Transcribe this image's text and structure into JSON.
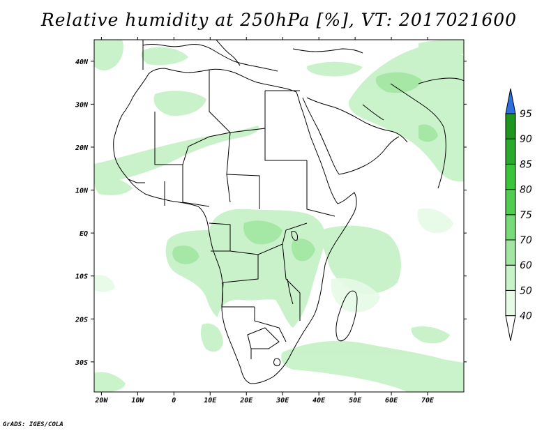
{
  "title": "Relative humidity at 250hPa [%], VT: 2017021600",
  "credit": "GrADS: IGES/COLA",
  "map": {
    "lon_range": [
      -22,
      80
    ],
    "lat_range": [
      -37,
      45
    ],
    "lon_ticks": [
      {
        "value": -20,
        "label": "20W"
      },
      {
        "value": -10,
        "label": "10W"
      },
      {
        "value": 0,
        "label": "0"
      },
      {
        "value": 10,
        "label": "10E"
      },
      {
        "value": 20,
        "label": "20E"
      },
      {
        "value": 30,
        "label": "30E"
      },
      {
        "value": 40,
        "label": "40E"
      },
      {
        "value": 50,
        "label": "50E"
      },
      {
        "value": 60,
        "label": "60E"
      },
      {
        "value": 70,
        "label": "70E"
      }
    ],
    "lat_ticks": [
      {
        "value": 40,
        "label": "40N"
      },
      {
        "value": 30,
        "label": "30N"
      },
      {
        "value": 20,
        "label": "20N"
      },
      {
        "value": 10,
        "label": "10N"
      },
      {
        "value": 0,
        "label": "EQ"
      },
      {
        "value": -10,
        "label": "10S"
      },
      {
        "value": -20,
        "label": "20S"
      },
      {
        "value": -30,
        "label": "30S"
      }
    ],
    "land_color": "#ffffff",
    "border_color": "#000000"
  },
  "colorbar": {
    "levels": [
      "40",
      "50",
      "60",
      "70",
      "75",
      "80",
      "85",
      "90",
      "95"
    ],
    "colors": [
      "#ffffff",
      "#e6fae6",
      "#c8f2c8",
      "#a2e6a2",
      "#78da78",
      "#50cc50",
      "#3ac43a",
      "#2aaa2a",
      "#1e961e",
      "#2a70e0"
    ]
  }
}
